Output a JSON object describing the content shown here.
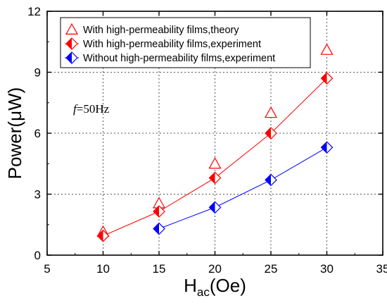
{
  "chart_data": {
    "type": "scatter",
    "xlabel": "Hac(Oe)",
    "xlabel_main": "H",
    "xlabel_sub": "ac",
    "xlabel_rest": "(Oe)",
    "ylabel": "Power(μW)",
    "xlim": [
      5,
      35
    ],
    "ylim": [
      0,
      12
    ],
    "xticks": [
      "5",
      "10",
      "15",
      "20",
      "25",
      "30",
      "35"
    ],
    "yticks": [
      "0",
      "3",
      "6",
      "9",
      "12"
    ],
    "grid": true,
    "legend_position": "top",
    "annotation": {
      "italic": "f",
      "rest": "=50Hz"
    },
    "series": [
      {
        "name": "With high-permeability films,theory",
        "marker": "open-triangle",
        "color": "#ff0000",
        "line": false,
        "x": [
          10,
          15,
          20,
          25,
          30
        ],
        "y": [
          1.15,
          2.55,
          4.5,
          7.0,
          10.1
        ]
      },
      {
        "name": "With high-permeability films,experiment",
        "marker": "half-filled-diamond",
        "color": "#ff0000",
        "line": true,
        "x": [
          10,
          15,
          20,
          25,
          30
        ],
        "y": [
          0.95,
          2.15,
          3.8,
          6.0,
          8.7
        ]
      },
      {
        "name": "Without high-permeability films,experiment",
        "marker": "half-filled-diamond",
        "color": "#0000ff",
        "line": true,
        "x": [
          15,
          20,
          25,
          30
        ],
        "y": [
          1.3,
          2.35,
          3.7,
          5.3
        ]
      }
    ]
  }
}
